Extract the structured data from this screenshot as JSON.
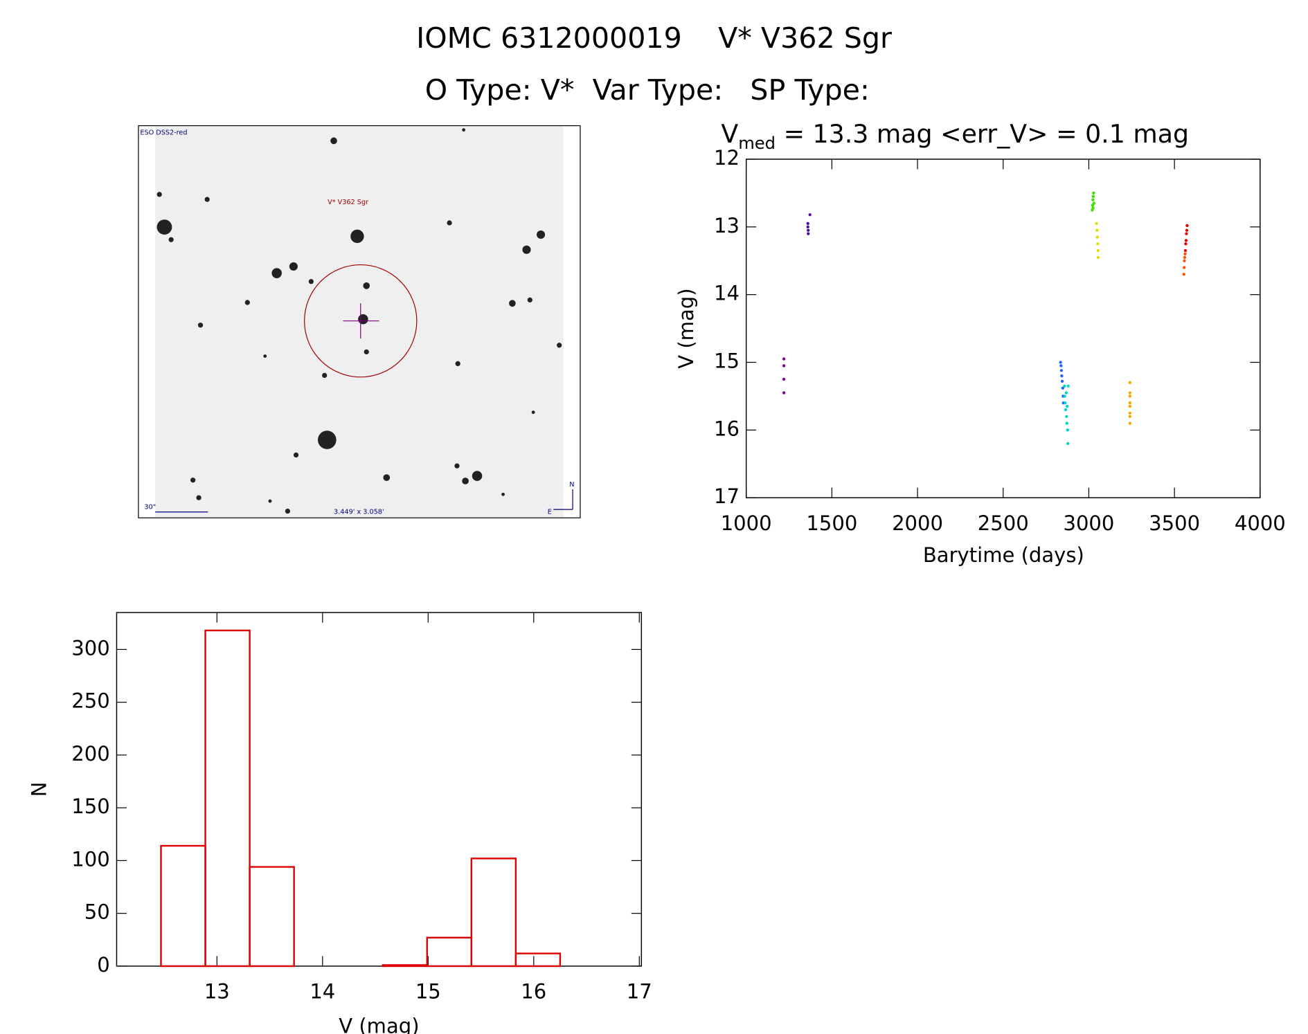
{
  "header": {
    "line1": "IOMC 6312000019    V* V362 Sgr",
    "line2": "O Type: V*  Var Type:   SP Type:"
  },
  "image": {
    "survey": "ESO DSS2-red",
    "target": "V* V362 Sgr",
    "scale": "30\"",
    "size": "3.449' x 3.058'",
    "north": "N",
    "east": "E"
  },
  "chart_data": [
    {
      "type": "scatter",
      "title": {
        "main": "V",
        "subscript": "med",
        "rest": " = 13.3 mag <err_V> = 0.1 mag"
      },
      "xlabel": "Barytime (days)",
      "ylabel": "V (mag)",
      "xlim": [
        1000,
        4000
      ],
      "xticks": [
        1000,
        1500,
        2000,
        2500,
        3000,
        3500,
        4000
      ],
      "ylim": [
        12,
        17
      ],
      "yticks": [
        12,
        13,
        14,
        15,
        16,
        17
      ],
      "y_inverted": true,
      "series": [
        {
          "color": "#8000a0",
          "x": [
            1220,
            1220,
            1220,
            1220
          ],
          "values": [
            14.95,
            15.05,
            15.25,
            15.45
          ]
        },
        {
          "color": "#4b0aa0",
          "x": [
            1360,
            1360,
            1362,
            1362,
            1372
          ],
          "values": [
            12.95,
            13.0,
            13.05,
            13.1,
            12.82
          ]
        },
        {
          "color": "#1e64ff",
          "x": [
            2835,
            2838,
            2840,
            2842,
            2845,
            2848,
            2850,
            2852
          ],
          "values": [
            15.0,
            15.05,
            15.12,
            15.2,
            15.28,
            15.38,
            15.5,
            15.6
          ]
        },
        {
          "color": "#00d4c8",
          "x": [
            2858,
            2860,
            2862,
            2865,
            2868,
            2870,
            2872,
            2874,
            2876,
            2878,
            2880
          ],
          "values": [
            15.35,
            15.5,
            15.6,
            15.7,
            15.45,
            15.8,
            15.9,
            15.65,
            16.0,
            16.2,
            15.35
          ]
        },
        {
          "color": "#40e000",
          "x": [
            3020,
            3022,
            3024,
            3026,
            3028,
            3030,
            3025
          ],
          "values": [
            12.75,
            12.68,
            12.6,
            12.55,
            12.5,
            12.65,
            12.72
          ]
        },
        {
          "color": "#e0e000",
          "x": [
            3045,
            3048,
            3050,
            3052,
            3054,
            3055
          ],
          "values": [
            12.95,
            13.05,
            13.15,
            13.25,
            13.35,
            13.45
          ]
        },
        {
          "color": "#ffa500",
          "x": [
            3240,
            3240,
            3240,
            3240,
            3240,
            3240,
            3240,
            3240
          ],
          "values": [
            15.3,
            15.45,
            15.5,
            15.6,
            15.65,
            15.75,
            15.8,
            15.9
          ]
        },
        {
          "color": "#ff5000",
          "x": [
            3555,
            3557,
            3558,
            3560,
            3562
          ],
          "values": [
            13.7,
            13.6,
            13.5,
            13.45,
            13.4
          ]
        },
        {
          "color": "#e00000",
          "x": [
            3564,
            3566,
            3568,
            3570,
            3572,
            3574
          ],
          "values": [
            13.35,
            13.25,
            13.2,
            13.1,
            13.05,
            12.98
          ]
        }
      ]
    },
    {
      "type": "histogram",
      "xlabel": "V (mag)",
      "ylabel": "N",
      "color": "#e00000",
      "bins": [
        12.47,
        12.89,
        13.31,
        13.73,
        14.15,
        14.57,
        14.99,
        15.41,
        15.83,
        16.25
      ],
      "values": [
        114,
        318,
        94,
        0,
        0,
        1,
        27,
        102,
        12
      ],
      "xlim": [
        12.05,
        17.02
      ],
      "xticks": [
        13,
        14,
        15,
        16,
        17
      ],
      "ylim": [
        0,
        335
      ],
      "yticks": [
        0,
        50,
        100,
        150,
        200,
        250,
        300
      ]
    }
  ]
}
